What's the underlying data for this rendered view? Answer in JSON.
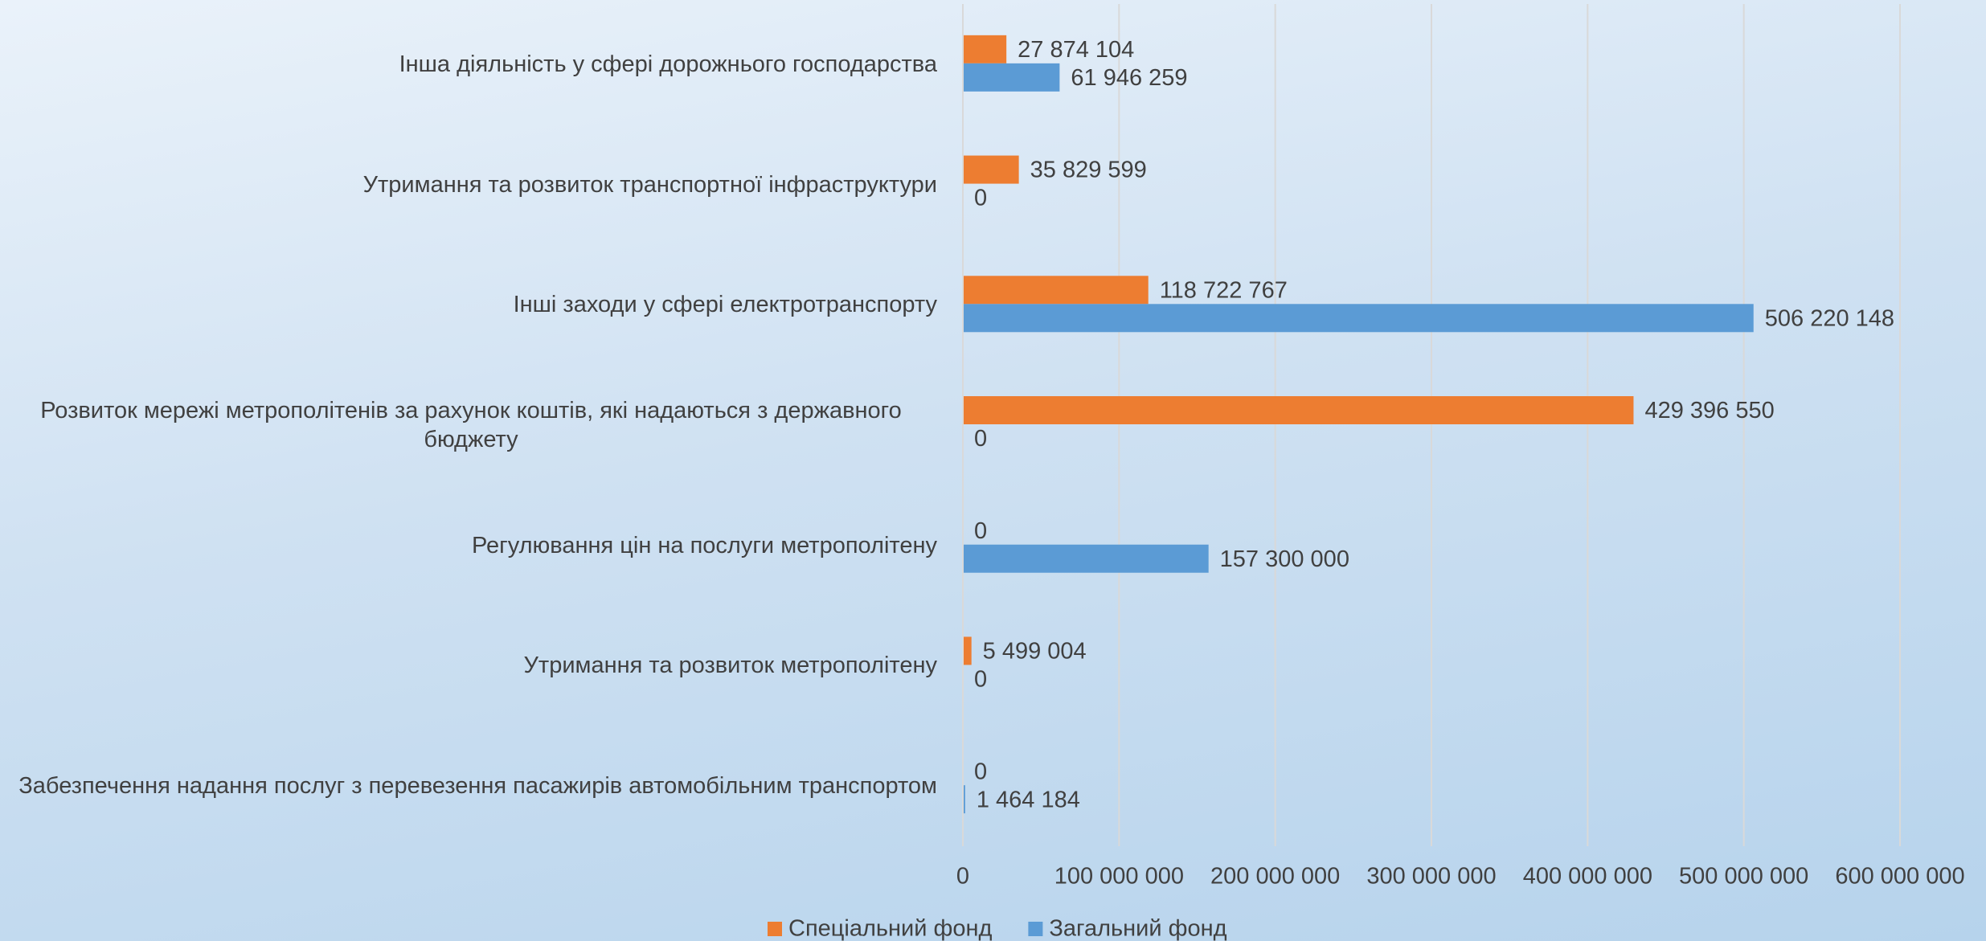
{
  "chart_data": {
    "type": "bar",
    "orientation": "horizontal",
    "categories": [
      "Інша діяльність у сфері дорожнього господарства",
      "Утримання та розвиток транспортної інфраструктури",
      "Інші заходи у сфері  електротранспорту",
      "Розвиток мережі метрополітенів за рахунок коштів, які надаються з державного бюджету",
      "Регулювання цін на послуги метрополітену",
      "Утримання та розвиток  метрополітену",
      "Забезпечення надання послуг з перевезення пасажирів автомобільним транспортом"
    ],
    "series": [
      {
        "name": "Спеціальний фонд",
        "color": "#ed7d31",
        "values": [
          27874104,
          35829599,
          118722767,
          429396550,
          0,
          5499004,
          0
        ],
        "value_labels": [
          "27 874 104",
          "35 829 599",
          "118 722 767",
          "429 396 550",
          "0",
          "5 499 004",
          "0"
        ]
      },
      {
        "name": "Загальний фонд",
        "color": "#5b9bd5",
        "values": [
          61946259,
          0,
          506220148,
          0,
          157300000,
          0,
          1464184
        ],
        "value_labels": [
          "61 946 259",
          "0",
          "506 220 148",
          "0",
          "157 300 000",
          "0",
          "1 464 184"
        ]
      }
    ],
    "xlim": [
      0,
      600000000
    ],
    "xticks": [
      0,
      {
        "value": 100000000,
        "label": "100 000 000"
      },
      {
        "value": 200000000,
        "label": "200 000 000"
      },
      {
        "value": 300000000,
        "label": "300 000 000"
      },
      {
        "value": 400000000,
        "label": "400 000 000"
      },
      {
        "value": 500000000,
        "label": "500 000 000"
      },
      {
        "value": 600000000,
        "label": "600 000 000"
      }
    ],
    "grid": true,
    "legend": "bottom"
  }
}
